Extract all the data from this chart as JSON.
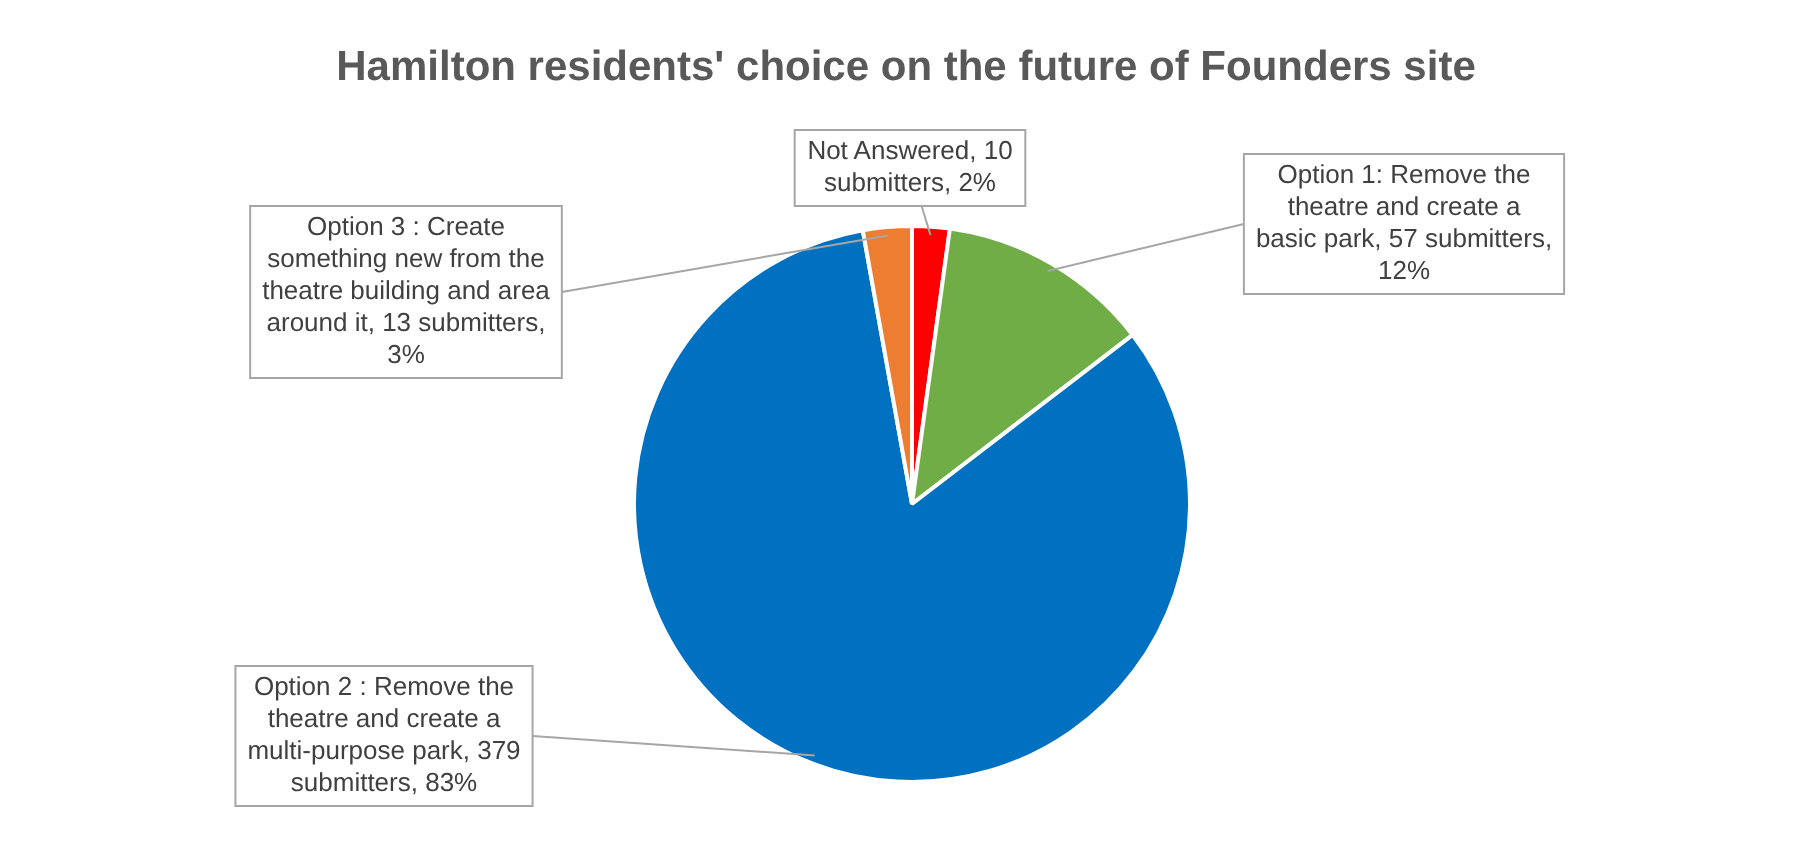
{
  "chart_data": {
    "type": "pie",
    "title": "Hamilton residents' choice on the future of Founders site",
    "categories": [
      "Not Answered",
      "Option 1: Remove the theatre and create a basic park",
      "Option 2 : Remove the theatre and create a multi-purpose park",
      "Option 3 : Create something new from the theatre building and area around it"
    ],
    "values": [
      10,
      57,
      379,
      13
    ],
    "value_labels": [
      "10 submitters, 2%",
      "57 submitters, 12%",
      "379 submitters, 83%",
      "13 submitters, 3%"
    ],
    "colors": [
      "#ff0000",
      "#70ad47",
      "#0070c0",
      "#ed7d31"
    ],
    "legend": false
  }
}
